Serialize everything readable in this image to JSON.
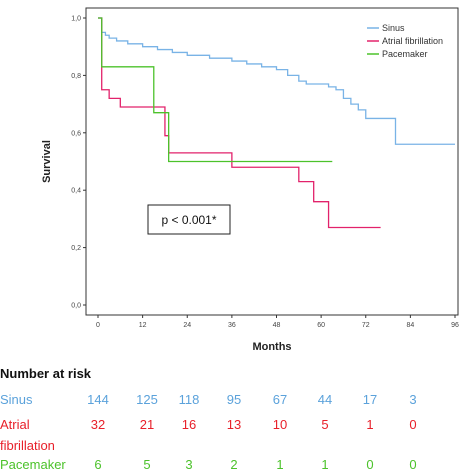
{
  "chart_data": {
    "type": "line",
    "ylabel": "Survival",
    "xlabel": "Months",
    "xlim": [
      0,
      96
    ],
    "ylim": [
      0.0,
      1.0
    ],
    "x_ticks": [
      "0",
      "12",
      "24",
      "36",
      "48",
      "60",
      "72",
      "84",
      "96"
    ],
    "y_ticks": [
      "0,0",
      "0,2",
      "0,4",
      "0,6",
      "0,8",
      "1,0"
    ],
    "legend_position": "top-right",
    "grid": false,
    "annotation": "p < 0.001*",
    "series": [
      {
        "name": "Sinus",
        "color": "#79b3e6",
        "steps": [
          [
            0,
            1.0
          ],
          [
            1,
            0.95
          ],
          [
            2,
            0.94
          ],
          [
            3,
            0.93
          ],
          [
            5,
            0.92
          ],
          [
            8,
            0.91
          ],
          [
            12,
            0.9
          ],
          [
            16,
            0.89
          ],
          [
            20,
            0.88
          ],
          [
            24,
            0.87
          ],
          [
            30,
            0.86
          ],
          [
            36,
            0.85
          ],
          [
            40,
            0.84
          ],
          [
            44,
            0.83
          ],
          [
            48,
            0.82
          ],
          [
            51,
            0.8
          ],
          [
            54,
            0.78
          ],
          [
            56,
            0.77
          ],
          [
            62,
            0.76
          ],
          [
            64,
            0.75
          ],
          [
            66,
            0.72
          ],
          [
            68,
            0.7
          ],
          [
            70,
            0.68
          ],
          [
            72,
            0.65
          ],
          [
            80,
            0.56
          ],
          [
            96,
            0.56
          ]
        ]
      },
      {
        "name": "Atrial fibrillation",
        "color": "#e2226b",
        "steps": [
          [
            0,
            1.0
          ],
          [
            1,
            0.75
          ],
          [
            3,
            0.72
          ],
          [
            6,
            0.69
          ],
          [
            18,
            0.59
          ],
          [
            19,
            0.53
          ],
          [
            36,
            0.48
          ],
          [
            54,
            0.43
          ],
          [
            58,
            0.36
          ],
          [
            62,
            0.27
          ],
          [
            76,
            0.27
          ]
        ]
      },
      {
        "name": "Pacemaker",
        "color": "#4cc22b",
        "steps": [
          [
            0,
            1.0
          ],
          [
            1,
            0.83
          ],
          [
            15,
            0.67
          ],
          [
            19,
            0.5
          ],
          [
            63,
            0.5
          ]
        ]
      }
    ]
  },
  "risk_table": {
    "title": "Number at risk",
    "rows": [
      {
        "label": "Sinus",
        "color": "#5ba2db",
        "values": [
          "144",
          "125",
          "118",
          "95",
          "67",
          "44",
          "17",
          "3"
        ]
      },
      {
        "label": "Atrial",
        "label2": "fibrillation",
        "color": "#e8202a",
        "values": [
          "32",
          "21",
          "16",
          "13",
          "10",
          "5",
          "1",
          "0"
        ]
      },
      {
        "label": "Pacemaker",
        "color": "#4cc22b",
        "values": [
          "6",
          "5",
          "3",
          "2",
          "1",
          "1",
          "0",
          "0"
        ]
      }
    ]
  }
}
